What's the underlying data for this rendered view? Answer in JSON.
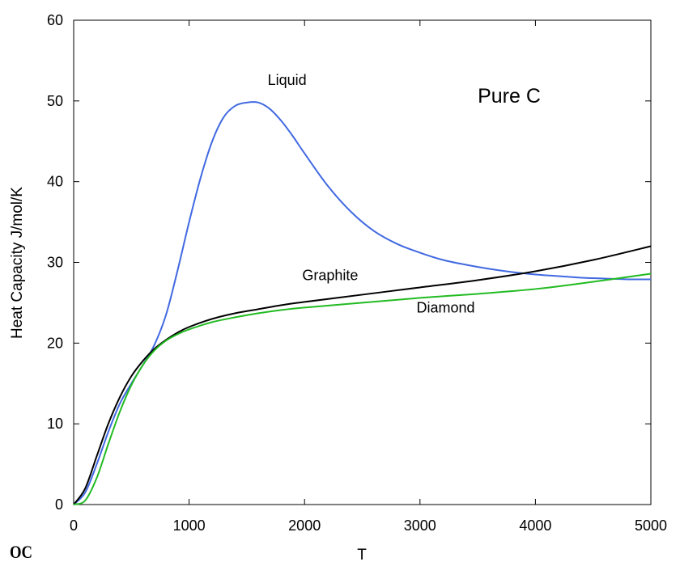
{
  "chart_data": {
    "type": "line",
    "xlabel": "T",
    "ylabel": "Heat Capacity J/mol/K",
    "xlim": [
      0,
      5000
    ],
    "ylim": [
      0,
      60
    ],
    "xticks": [
      0,
      1000,
      2000,
      3000,
      4000,
      5000
    ],
    "yticks": [
      0,
      10,
      20,
      30,
      40,
      50,
      60
    ],
    "grid": false,
    "legend": "none",
    "series": [
      {
        "name": "Liquid",
        "color": "#4169e1",
        "x": [
          0,
          100,
          200,
          300,
          400,
          500,
          600,
          700,
          800,
          900,
          1000,
          1100,
          1200,
          1300,
          1400,
          1500,
          1600,
          1700,
          1800,
          1900,
          2000,
          2200,
          2400,
          2600,
          2800,
          3000,
          3200,
          3400,
          3600,
          3800,
          4000,
          4200,
          4400,
          4600,
          4800,
          5000
        ],
        "y": [
          0,
          1.5,
          5.0,
          9.0,
          12.5,
          15.0,
          17.3,
          19.8,
          23.5,
          29.0,
          35.0,
          40.5,
          45.0,
          48.0,
          49.4,
          49.8,
          49.8,
          49.0,
          47.5,
          45.6,
          43.5,
          39.5,
          36.3,
          33.9,
          32.3,
          31.2,
          30.3,
          29.7,
          29.2,
          28.8,
          28.5,
          28.3,
          28.1,
          28.0,
          27.9,
          27.9
        ]
      },
      {
        "name": "Graphite",
        "color": "#000000",
        "x": [
          0,
          100,
          200,
          300,
          400,
          500,
          600,
          700,
          800,
          900,
          1000,
          1200,
          1400,
          1600,
          1800,
          2000,
          2500,
          3000,
          3500,
          4000,
          4500,
          5000
        ],
        "y": [
          0,
          2.0,
          6.0,
          10.0,
          13.3,
          15.9,
          17.8,
          19.3,
          20.4,
          21.3,
          22.0,
          23.0,
          23.7,
          24.2,
          24.7,
          25.1,
          26.0,
          26.9,
          27.8,
          28.9,
          30.3,
          32.0
        ]
      },
      {
        "name": "Diamond",
        "color": "#22bb22",
        "x": [
          0,
          100,
          200,
          300,
          400,
          500,
          600,
          700,
          800,
          900,
          1000,
          1200,
          1400,
          1600,
          1800,
          2000,
          2500,
          3000,
          3500,
          4000,
          4500,
          5000
        ],
        "y": [
          0,
          0.5,
          3.3,
          7.5,
          11.5,
          14.8,
          17.3,
          19.1,
          20.3,
          21.1,
          21.7,
          22.6,
          23.2,
          23.7,
          24.1,
          24.4,
          25.0,
          25.6,
          26.1,
          26.7,
          27.6,
          28.6
        ]
      }
    ],
    "annotations": [
      {
        "text": "Liquid",
        "x": 1680,
        "y": 52
      },
      {
        "text": "Graphite",
        "x": 1980,
        "y": 27.8
      },
      {
        "text": "Diamond",
        "x": 2970,
        "y": 23.8
      },
      {
        "text": "Pure C",
        "x": 3500,
        "y": 49.8
      }
    ]
  },
  "logo_text": "OC"
}
